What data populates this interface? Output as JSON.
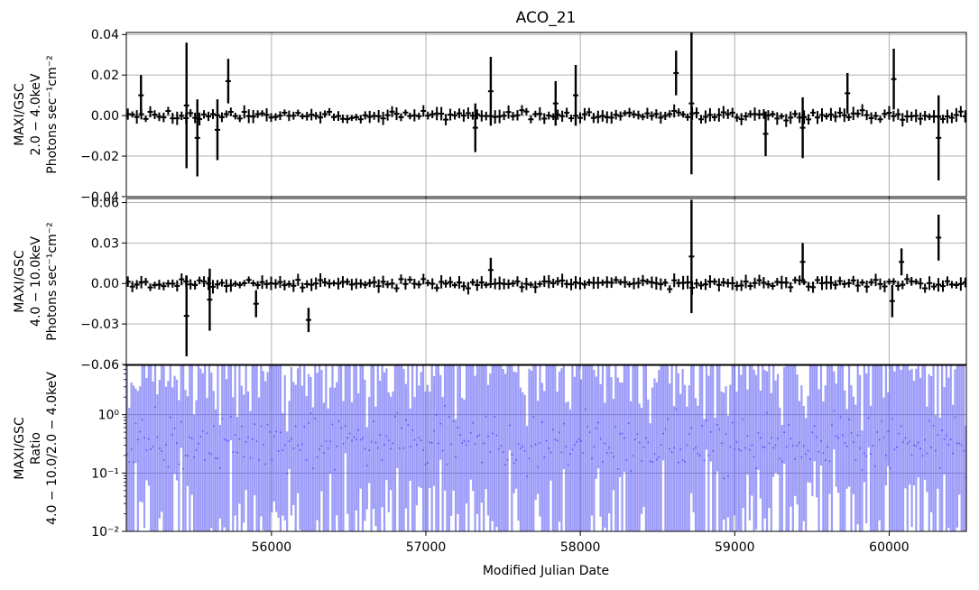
{
  "title": "ACO_21",
  "xlabel": "Modified Julian Date",
  "colors": {
    "data": "#000000",
    "ratio": "#4a4af4",
    "grid": "#b0b0b0",
    "axis": "#000000"
  },
  "chart_data": [
    {
      "type": "scatter",
      "title": "ACO_21",
      "ylabel_lines": [
        "MAXI/GSC",
        "2.0 − 4.0keV",
        "Photons sec⁻¹cm⁻²"
      ],
      "xlim": [
        55060,
        60500
      ],
      "ylim": [
        -0.04,
        0.041
      ],
      "yticks": [
        -0.04,
        -0.02,
        0.0,
        0.02,
        0.04
      ],
      "ytick_labels": [
        "−0.04",
        "−0.02",
        "0.00",
        "0.02",
        "0.04"
      ],
      "grid": true,
      "highlights": [
        {
          "x": 55155,
          "y": 0.01,
          "err": 0.01
        },
        {
          "x": 55450,
          "y": 0.005,
          "err": 0.031
        },
        {
          "x": 55520,
          "y": -0.011,
          "err": 0.019
        },
        {
          "x": 55650,
          "y": -0.007,
          "err": 0.015
        },
        {
          "x": 55720,
          "y": 0.017,
          "err": 0.011
        },
        {
          "x": 57320,
          "y": -0.006,
          "err": 0.012
        },
        {
          "x": 57420,
          "y": 0.012,
          "err": 0.017
        },
        {
          "x": 57840,
          "y": 0.006,
          "err": 0.011
        },
        {
          "x": 57970,
          "y": 0.01,
          "err": 0.015
        },
        {
          "x": 58620,
          "y": 0.021,
          "err": 0.011
        },
        {
          "x": 58720,
          "y": 0.006,
          "err": 0.035
        },
        {
          "x": 59200,
          "y": -0.009,
          "err": 0.011
        },
        {
          "x": 59440,
          "y": -0.006,
          "err": 0.015
        },
        {
          "x": 59730,
          "y": 0.011,
          "err": 0.01
        },
        {
          "x": 60030,
          "y": 0.018,
          "err": 0.015
        },
        {
          "x": 60320,
          "y": -0.011,
          "err": 0.021
        }
      ]
    },
    {
      "type": "scatter",
      "ylabel_lines": [
        "MAXI/GSC",
        "4.0 − 10.0keV",
        "Photons sec⁻¹cm⁻²"
      ],
      "xlim": [
        55060,
        60500
      ],
      "ylim": [
        -0.06,
        0.063
      ],
      "yticks": [
        -0.06,
        -0.03,
        0.0,
        0.03,
        0.06
      ],
      "ytick_labels": [
        "−0.06",
        "−0.03",
        "0.00",
        "0.03",
        "0.06"
      ],
      "grid": true,
      "highlights": [
        {
          "x": 55450,
          "y": -0.024,
          "err": 0.03
        },
        {
          "x": 55600,
          "y": -0.012,
          "err": 0.023
        },
        {
          "x": 55900,
          "y": -0.015,
          "err": 0.01
        },
        {
          "x": 56240,
          "y": -0.027,
          "err": 0.009
        },
        {
          "x": 57420,
          "y": 0.01,
          "err": 0.009
        },
        {
          "x": 58720,
          "y": 0.02,
          "err": 0.042
        },
        {
          "x": 59440,
          "y": 0.016,
          "err": 0.014
        },
        {
          "x": 60020,
          "y": -0.013,
          "err": 0.012
        },
        {
          "x": 60080,
          "y": 0.016,
          "err": 0.01
        },
        {
          "x": 60320,
          "y": 0.034,
          "err": 0.017
        }
      ]
    },
    {
      "type": "scatter",
      "ylabel_lines": [
        "MAXI/GSC",
        "Ratio",
        "4.0 − 10.0/2.0 − 4.0keV"
      ],
      "xlim": [
        55060,
        60500
      ],
      "yscale": "log",
      "ylim": [
        0.01,
        7.0
      ],
      "yticks": [
        0.01,
        0.1,
        1.0
      ],
      "ytick_labels": [
        "10⁻²",
        "10⁻¹",
        "10⁰"
      ],
      "xticks": [
        56000,
        57000,
        58000,
        59000,
        60000
      ],
      "xtick_labels": [
        "56000",
        "57000",
        "58000",
        "59000",
        "60000"
      ],
      "grid": true
    }
  ]
}
